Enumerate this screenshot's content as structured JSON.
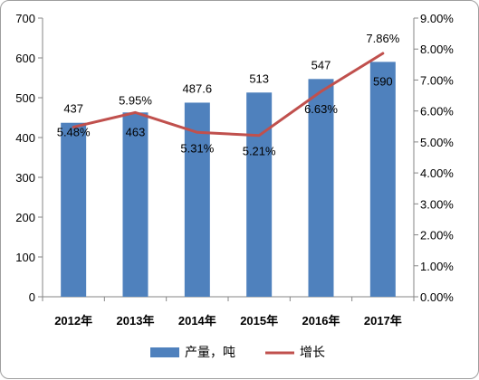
{
  "chart_data": {
    "type": "bar",
    "categories": [
      "2012年",
      "2013年",
      "2014年",
      "2015年",
      "2016年",
      "2017年"
    ],
    "series": [
      {
        "name": "产量，吨",
        "type": "bar",
        "axis": "left",
        "color": "#4f81bd",
        "values": [
          437,
          463,
          487.6,
          513,
          547,
          590
        ],
        "labels": [
          "437",
          "463",
          "487.6",
          "513",
          "547",
          "590"
        ]
      },
      {
        "name": "增长",
        "type": "line",
        "axis": "right",
        "color": "#c0504d",
        "values": [
          5.48,
          5.95,
          5.31,
          5.21,
          6.63,
          7.86
        ],
        "labels": [
          "5.48%",
          "5.95%",
          "5.31%",
          "5.21%",
          "6.63%",
          "7.86%"
        ]
      }
    ],
    "left_axis": {
      "min": 0,
      "max": 700,
      "step": 100,
      "ticks": [
        "0",
        "100",
        "200",
        "300",
        "400",
        "500",
        "600",
        "700"
      ]
    },
    "right_axis": {
      "min": 0,
      "max": 9,
      "step": 1,
      "ticks": [
        "0.00%",
        "1.00%",
        "2.00%",
        "3.00%",
        "4.00%",
        "5.00%",
        "6.00%",
        "7.00%",
        "8.00%",
        "9.00%"
      ]
    },
    "grid": false,
    "legend": {
      "position": "bottom",
      "items": [
        "产量，吨",
        "增长"
      ]
    }
  }
}
